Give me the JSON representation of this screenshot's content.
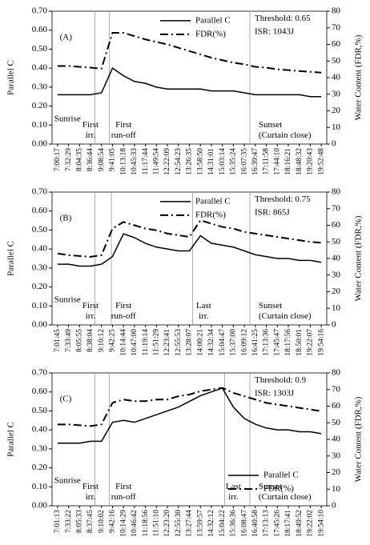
{
  "chart_data": [
    {
      "type": "line",
      "panel_label": "(A)",
      "threshold": "Threshold: 0.65",
      "isr": "ISR: 1043J",
      "y_label": "Parallel C",
      "y2_label": "Water Content (FDR,%)",
      "categories": [
        "7:00:17",
        "7:32:29",
        "8:04:35",
        "8:36:44",
        "9:08:54",
        "9:41:05",
        "10:13:18",
        "10:45:33",
        "11:17:44",
        "11:49:54",
        "12:22:09",
        "12:54:23",
        "13:26:35",
        "13:58:50",
        "14:31:01",
        "15:03:14",
        "15:35:24",
        "16:07:35",
        "16:39:47",
        "17:11:58",
        "17:44:10",
        "18:16:21",
        "18:48:32",
        "19:20:43",
        "19:52:48"
      ],
      "ylim": [
        0,
        0.7
      ],
      "yticks": [
        {
          "value": 0,
          "label": "0.00"
        },
        {
          "value": 0.1,
          "label": "0.10"
        },
        {
          "value": 0.2,
          "label": "0.20"
        },
        {
          "value": 0.3,
          "label": "0.30"
        },
        {
          "value": 0.4,
          "label": "0.40"
        },
        {
          "value": 0.5,
          "label": "0.50"
        },
        {
          "value": 0.6,
          "label": "0.60"
        },
        {
          "value": 0.7,
          "label": "0.70"
        }
      ],
      "y2lim": [
        0,
        80
      ],
      "y2ticks": [
        0,
        10,
        20,
        30,
        40,
        50,
        60,
        70,
        80
      ],
      "legend": "upper center",
      "series": [
        {
          "name": "Parallel C",
          "color": "#000000",
          "style": "solid",
          "values": [
            0.26,
            0.26,
            0.26,
            0.26,
            0.27,
            0.4,
            0.36,
            0.33,
            0.32,
            0.3,
            0.29,
            0.29,
            0.29,
            0.29,
            0.28,
            0.28,
            0.28,
            0.27,
            0.26,
            0.26,
            0.26,
            0.26,
            0.26,
            0.25,
            0.25
          ]
        },
        {
          "name": "FDR(%)",
          "color": "#000000",
          "style": "dashdot",
          "axis": "y2",
          "values": [
            47,
            47,
            46.5,
            46,
            45.5,
            67,
            67,
            65,
            63,
            61.5,
            60,
            58,
            56,
            54,
            52,
            50.5,
            49,
            48,
            46.5,
            46,
            45,
            44.5,
            44,
            43.5,
            43
          ]
        }
      ],
      "annotations": [
        [
          "Sunrise"
        ],
        [
          "First",
          "irr."
        ],
        [
          "First",
          "run-off"
        ],
        [
          "Sunset",
          "(Curtain close)"
        ]
      ]
    },
    {
      "type": "line",
      "panel_label": "(B)",
      "threshold": "Threshold: 0.75",
      "isr": "ISR: 865J",
      "y_label": "Parallel C",
      "y2_label": "Water Content (FDR,%)",
      "categories": [
        "7:01:45",
        "7:33:49",
        "8:05:55",
        "8:38:04",
        "9:10:12",
        "9:42:25",
        "10:14:44",
        "10:47:00",
        "11:19:14",
        "11:51:29",
        "12:23:41",
        "12:55:53",
        "13:28:07",
        "14:00:21",
        "14:32:34",
        "15:04:47",
        "15:37:00",
        "16:09:12",
        "16:41:25",
        "17:13:36",
        "17:45:47",
        "18:17:56",
        "18:50:01",
        "19:22:07",
        "19:54:16"
      ],
      "ylim": [
        0,
        0.7
      ],
      "yticks": [
        {
          "value": 0,
          "label": "0.00"
        },
        {
          "value": 0.1,
          "label": "0.10"
        },
        {
          "value": 0.2,
          "label": "0.20"
        },
        {
          "value": 0.3,
          "label": "0.30"
        },
        {
          "value": 0.4,
          "label": "0.40"
        },
        {
          "value": 0.5,
          "label": "0.50"
        },
        {
          "value": 0.6,
          "label": "0.60"
        },
        {
          "value": 0.7,
          "label": "0.70"
        }
      ],
      "y2lim": [
        0,
        80
      ],
      "y2ticks": [
        0,
        10,
        20,
        30,
        40,
        50,
        60,
        70,
        80
      ],
      "legend": "upper center",
      "series": [
        {
          "name": "Parallel C",
          "color": "#000000",
          "style": "solid",
          "values": [
            0.32,
            0.32,
            0.31,
            0.31,
            0.32,
            0.36,
            0.48,
            0.46,
            0.43,
            0.41,
            0.4,
            0.39,
            0.39,
            0.47,
            0.43,
            0.42,
            0.41,
            0.39,
            0.37,
            0.36,
            0.35,
            0.35,
            0.34,
            0.34,
            0.33
          ]
        },
        {
          "name": "FDR(%)",
          "color": "#000000",
          "style": "dashdot",
          "axis": "y2",
          "values": [
            43,
            42,
            41.5,
            41,
            42,
            58,
            62,
            60,
            58,
            57,
            55,
            54,
            53,
            63,
            61,
            59,
            58,
            56,
            55,
            54,
            53,
            52,
            51,
            50,
            49.5
          ]
        }
      ],
      "annotations": [
        [
          "Sunrise"
        ],
        [
          "First",
          "irr."
        ],
        [
          "First",
          "run-off"
        ],
        [
          "Last",
          "irr."
        ],
        [
          "Sunset",
          "(Curtain close)"
        ]
      ]
    },
    {
      "type": "line",
      "panel_label": "(C)",
      "threshold": "Threshold: 0.9",
      "isr": "ISR: 1303J",
      "y_label": "Parallel C",
      "y2_label": "Water Content (FDR,%)",
      "categories": [
        "7:01:13",
        "7:33:22",
        "8:05:33",
        "8:37:45",
        "9:10:02",
        "9:42:16",
        "10:14:29",
        "10:46:42",
        "11:18:56",
        "11:51:10",
        "12:23:20",
        "12:55:30",
        "13:27:44",
        "13:59:57",
        "14:32:12",
        "15:04:22",
        "15:36:36",
        "16:08:47",
        "16:40:58",
        "17:13:13",
        "17:45:26",
        "18:17:41",
        "18:49:52",
        "19:22:02",
        "19:54:10"
      ],
      "ylim": [
        0,
        0.7
      ],
      "yticks": [
        {
          "value": 0,
          "label": "0.00"
        },
        {
          "value": 0.1,
          "label": "0.10"
        },
        {
          "value": 0.2,
          "label": "0.20"
        },
        {
          "value": 0.3,
          "label": "0.30"
        },
        {
          "value": 0.4,
          "label": "0.40"
        },
        {
          "value": 0.5,
          "label": "0.50"
        },
        {
          "value": 0.6,
          "label": "0.60"
        },
        {
          "value": 0.7,
          "label": "0.70"
        }
      ],
      "y2lim": [
        0,
        80
      ],
      "y2ticks": [
        0,
        10,
        20,
        30,
        40,
        50,
        60,
        70,
        80
      ],
      "legend": "lower right",
      "series": [
        {
          "name": "Parallel C",
          "color": "#000000",
          "style": "solid",
          "values": [
            0.33,
            0.33,
            0.33,
            0.34,
            0.34,
            0.44,
            0.45,
            0.44,
            0.46,
            0.48,
            0.5,
            0.52,
            0.55,
            0.58,
            0.6,
            0.62,
            0.52,
            0.46,
            0.43,
            0.41,
            0.4,
            0.4,
            0.39,
            0.39,
            0.38
          ]
        },
        {
          "name": "FDR(%)",
          "color": "#000000",
          "style": "dashdot",
          "axis": "y2",
          "values": [
            49,
            49,
            48.5,
            48,
            49,
            62,
            64,
            63,
            63,
            64,
            64,
            66,
            67,
            69,
            70,
            71,
            68,
            66,
            64,
            62,
            61,
            60,
            59,
            58,
            57
          ]
        }
      ],
      "annotations": [
        [
          "Sunrise"
        ],
        [
          "First",
          "irr."
        ],
        [
          "First",
          "run-off"
        ],
        [
          "Last",
          "irr."
        ],
        [
          "Sunset",
          "(Curtain close)"
        ]
      ]
    }
  ]
}
